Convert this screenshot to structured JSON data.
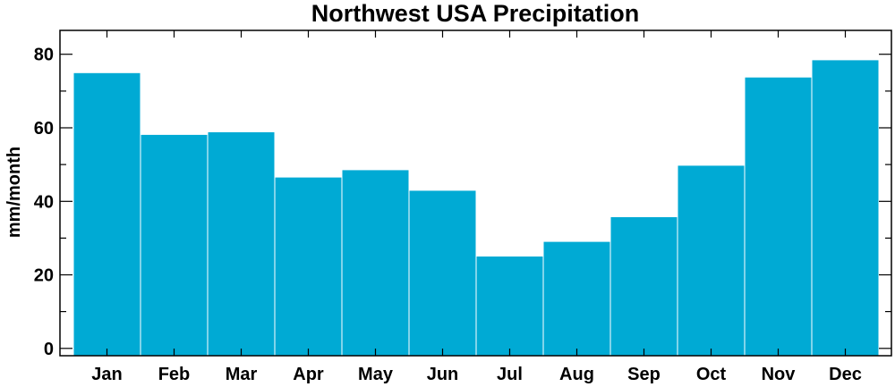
{
  "chart_data": {
    "type": "bar",
    "title": "Northwest USA Precipitation",
    "xlabel": "",
    "ylabel": "mm/month",
    "categories": [
      "Jan",
      "Feb",
      "Mar",
      "Apr",
      "May",
      "Jun",
      "Jul",
      "Aug",
      "Sep",
      "Oct",
      "Nov",
      "Dec"
    ],
    "values": [
      75,
      58.2,
      58.9,
      46.6,
      48.6,
      43,
      25.1,
      29.1,
      35.8,
      49.8,
      73.8,
      78.5
    ],
    "ylim": [
      -2,
      86.5
    ],
    "yticks": [
      0,
      20,
      40,
      60,
      80
    ],
    "yticks_minor": [
      10,
      30,
      50,
      70
    ],
    "bar_color": "#00aad4",
    "grid": false,
    "legend": "none"
  }
}
